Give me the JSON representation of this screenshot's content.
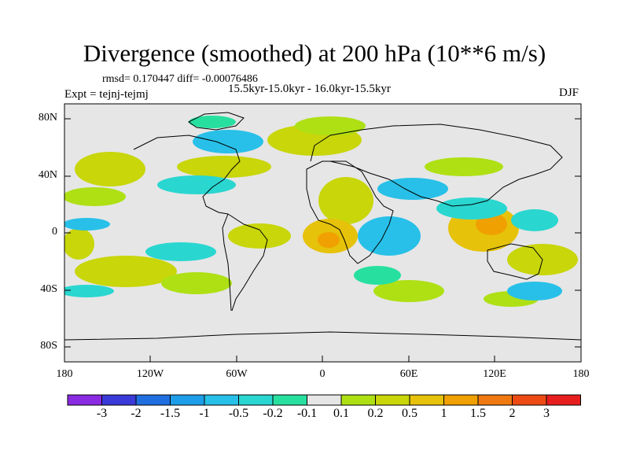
{
  "title": "Divergence (smoothed) at 200 hPa (10**6 m/s)",
  "stats": "rmsd= 0.170447 diff= -0.00076486",
  "period": "15.5kyr-15.0kyr - 16.0kyr-15.5kyr",
  "experiment": "Expt = tejnj-tejmj",
  "season": "DJF",
  "axes": {
    "y_ticks": [
      "80N",
      "40N",
      "0",
      "40S",
      "80S"
    ],
    "x_ticks": [
      "180",
      "120W",
      "60W",
      "0",
      "60E",
      "120E",
      "180"
    ]
  },
  "colorbar": {
    "labels": [
      "-3",
      "-2",
      "-1.5",
      "-1",
      "-0.5",
      "-0.2",
      "-0.1",
      "0.1",
      "0.2",
      "0.5",
      "1",
      "1.5",
      "2",
      "3"
    ],
    "colors": [
      "#8a2be2",
      "#3a3ad8",
      "#1f6fe0",
      "#1e9ee8",
      "#28c0e8",
      "#2ad6d0",
      "#27e0a0",
      "#e6e6e6",
      "#aee014",
      "#c8d60a",
      "#e6c20a",
      "#f0a000",
      "#f07810",
      "#ee4a14",
      "#e81e1e"
    ]
  },
  "colors": {
    "background_field": "#e6e6e6",
    "coastline": "#000000"
  }
}
